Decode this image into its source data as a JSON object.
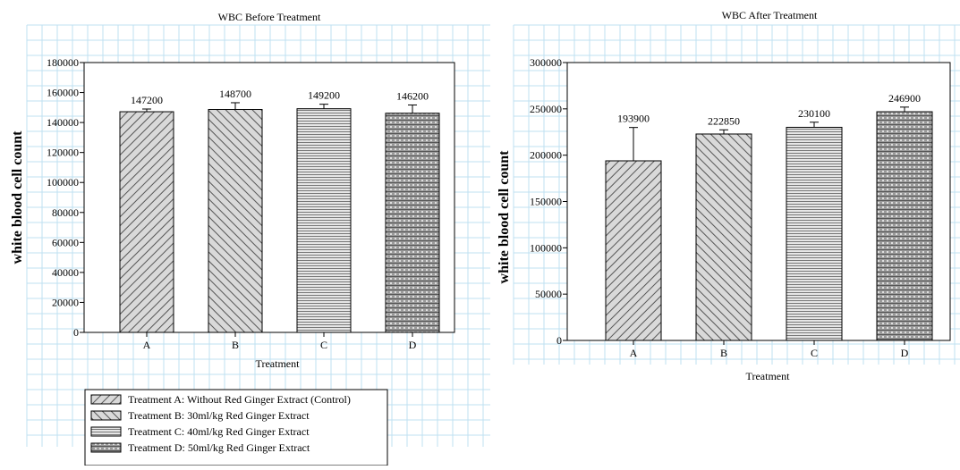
{
  "chart_data": [
    {
      "type": "bar",
      "title": "WBC Before Treatment",
      "xlabel": "Treatment",
      "ylabel": "white blood cell count",
      "categories": [
        "A",
        "B",
        "C",
        "D"
      ],
      "values": [
        147200,
        148700,
        149200,
        146200
      ],
      "data_labels": [
        "147200",
        "148700",
        "149200",
        "146200"
      ],
      "errors": [
        1800,
        4500,
        3000,
        5500
      ],
      "ylim": [
        0,
        180000
      ],
      "yticks": [
        0,
        20000,
        40000,
        60000,
        80000,
        100000,
        120000,
        140000,
        160000,
        180000
      ],
      "ytick_labels": [
        "0",
        "20000",
        "40000",
        "60000",
        "80000",
        "100000",
        "120000",
        "140000",
        "160000",
        "180000"
      ],
      "grid": true
    },
    {
      "type": "bar",
      "title": "WBC After Treatment",
      "xlabel": "Treatment",
      "ylabel": "white blood cell count",
      "categories": [
        "A",
        "B",
        "C",
        "D"
      ],
      "values": [
        193900,
        222850,
        230100,
        246900
      ],
      "data_labels": [
        "193900",
        "222850",
        "230100",
        "246900"
      ],
      "errors": [
        36000,
        4500,
        5500,
        5000
      ],
      "ylim": [
        0,
        300000
      ],
      "yticks": [
        0,
        50000,
        100000,
        150000,
        200000,
        250000,
        300000
      ],
      "ytick_labels": [
        "0",
        "50000",
        "100000",
        "150000",
        "200000",
        "250000",
        "300000"
      ],
      "grid": true
    }
  ],
  "legend": {
    "placement": "bottom-left",
    "items": [
      {
        "label": "Treatment A: Without Red Ginger Extract (Control)",
        "pattern": "diag-right"
      },
      {
        "label": "Treatment B: 30ml/kg Red Ginger Extract",
        "pattern": "diag-left"
      },
      {
        "label": "Treatment C: 40ml/kg Red Ginger Extract",
        "pattern": "horizontal"
      },
      {
        "label": "Treatment D: 50ml/kg Red Ginger Extract",
        "pattern": "dots"
      }
    ]
  },
  "colors": {
    "grid": "#bfe0f2",
    "bar_fill": "#d9d9d9",
    "hatch": "#555555",
    "axis": "#000000"
  }
}
